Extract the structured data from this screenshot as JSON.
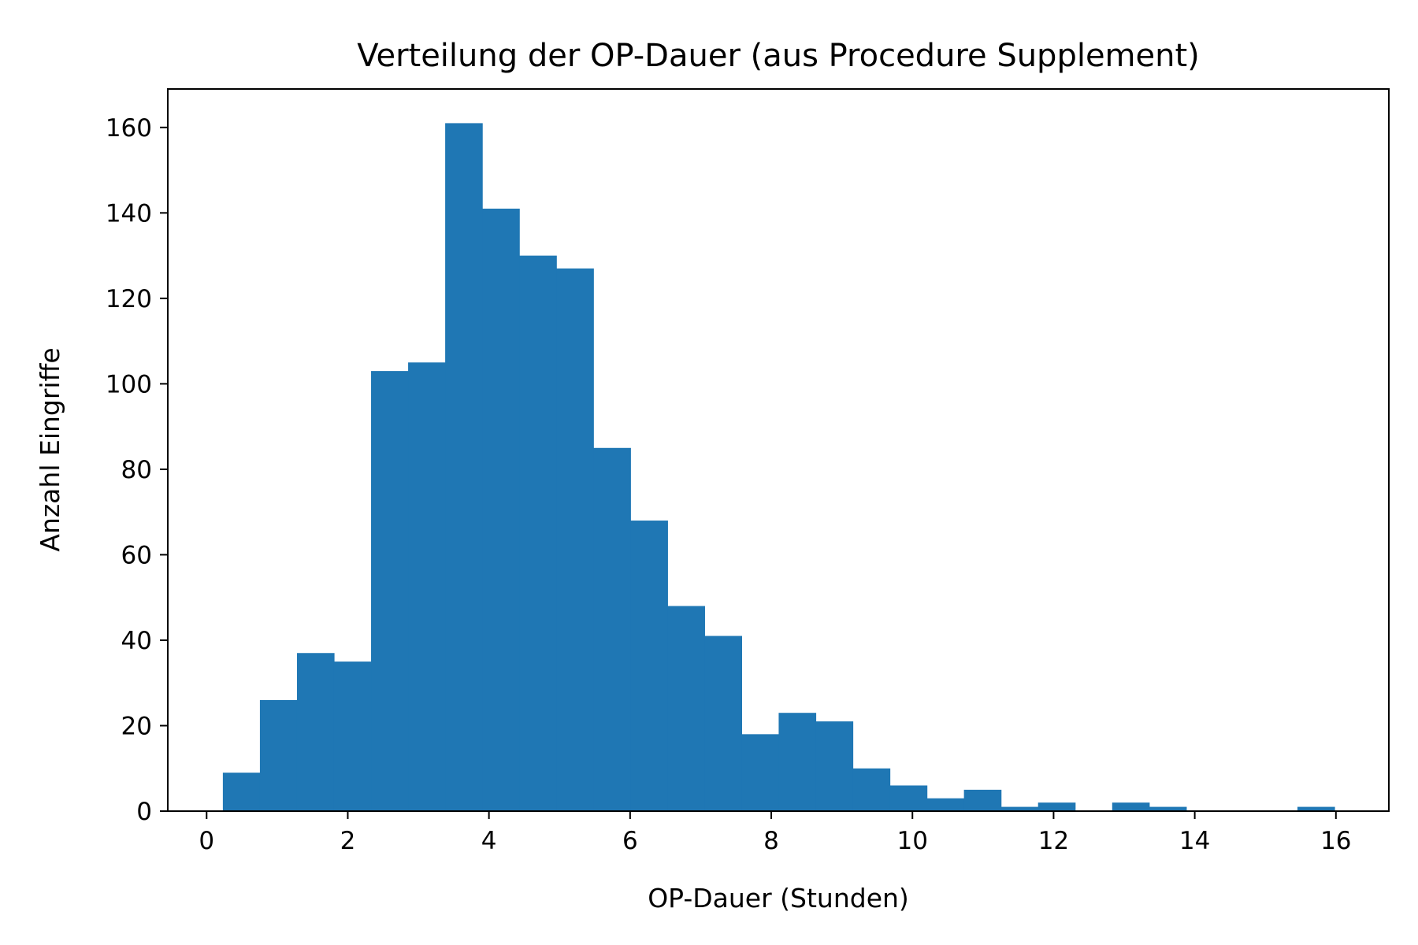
{
  "chart_data": {
    "type": "bar",
    "title": "Verteilung der OP-Dauer (aus Procedure Supplement)",
    "xlabel": "OP-Dauer (Stunden)",
    "ylabel": "Anzahl Eingriffe",
    "xlim": [
      -0.55,
      16.75
    ],
    "ylim": [
      0,
      169
    ],
    "xticks": [
      0,
      2,
      4,
      6,
      8,
      10,
      12,
      14,
      16
    ],
    "yticks": [
      0,
      20,
      40,
      60,
      80,
      100,
      120,
      140,
      160
    ],
    "bin_edges": [
      0.23,
      0.755,
      1.28,
      1.805,
      2.33,
      2.855,
      3.38,
      3.905,
      4.43,
      4.955,
      5.48,
      6.005,
      6.53,
      7.055,
      7.58,
      8.105,
      8.63,
      9.155,
      9.68,
      10.205,
      10.73,
      11.255,
      11.78,
      12.305,
      12.83,
      13.355,
      13.88,
      14.405,
      14.93,
      15.455,
      15.98
    ],
    "counts": [
      9,
      26,
      37,
      35,
      103,
      105,
      161,
      141,
      130,
      127,
      85,
      68,
      48,
      41,
      18,
      23,
      21,
      10,
      6,
      3,
      5,
      1,
      2,
      0,
      2,
      1,
      0,
      0,
      0,
      1
    ],
    "bar_color": "#1f77b4",
    "grid": false,
    "legend": "none"
  }
}
